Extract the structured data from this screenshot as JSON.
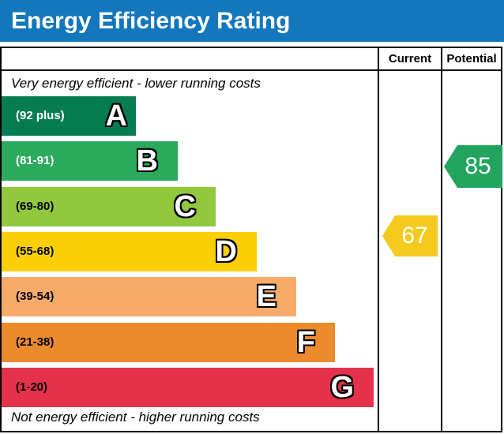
{
  "header": {
    "title": "Energy Efficiency Rating",
    "bg_color": "#1277bd",
    "text_color": "#ffffff"
  },
  "table": {
    "columns": {
      "current": "Current",
      "potential": "Potential"
    }
  },
  "captions": {
    "top": "Very energy efficient - lower running costs",
    "bottom": "Not energy efficient - higher running costs"
  },
  "bands": [
    {
      "letter": "A",
      "range": "(92 plus)",
      "color": "#077c52",
      "label_color": "#ffffff"
    },
    {
      "letter": "B",
      "range": "(81-91)",
      "color": "#2caa5c",
      "label_color": "#ffffff"
    },
    {
      "letter": "C",
      "range": "(69-80)",
      "color": "#91c83d",
      "label_color": "#000000"
    },
    {
      "letter": "D",
      "range": "(55-68)",
      "color": "#fbcf06",
      "label_color": "#000000"
    },
    {
      "letter": "E",
      "range": "(39-54)",
      "color": "#f6ab6a",
      "label_color": "#000000"
    },
    {
      "letter": "F",
      "range": "(21-38)",
      "color": "#ec8a2e",
      "label_color": "#000000"
    },
    {
      "letter": "G",
      "range": "(1-20)",
      "color": "#e5314b",
      "label_color": "#000000"
    }
  ],
  "ratings": {
    "current": {
      "value": "67",
      "band": "D",
      "color": "#f3ca1d"
    },
    "potential": {
      "value": "85",
      "band": "B",
      "color": "#22a45f"
    }
  },
  "chart_data": {
    "type": "bar",
    "title": "Energy Efficiency Rating",
    "orientation": "horizontal",
    "categories": [
      "A (92 plus)",
      "B (81-91)",
      "C (69-80)",
      "D (55-68)",
      "E (39-54)",
      "F (21-38)",
      "G (1-20)"
    ],
    "band_colors": [
      "#077c52",
      "#2caa5c",
      "#91c83d",
      "#fbcf06",
      "#f6ab6a",
      "#ec8a2e",
      "#e5314b"
    ],
    "bar_relative_widths": [
      170,
      223,
      271,
      323,
      373,
      422,
      471
    ],
    "columns": [
      "Current",
      "Potential"
    ],
    "markers": [
      {
        "name": "Current",
        "value": 67,
        "band": "D",
        "color": "#f3ca1d"
      },
      {
        "name": "Potential",
        "value": 85,
        "band": "B",
        "color": "#22a45f"
      }
    ],
    "annotations": [
      "Very energy efficient - lower running costs",
      "Not energy efficient - higher running costs"
    ]
  }
}
